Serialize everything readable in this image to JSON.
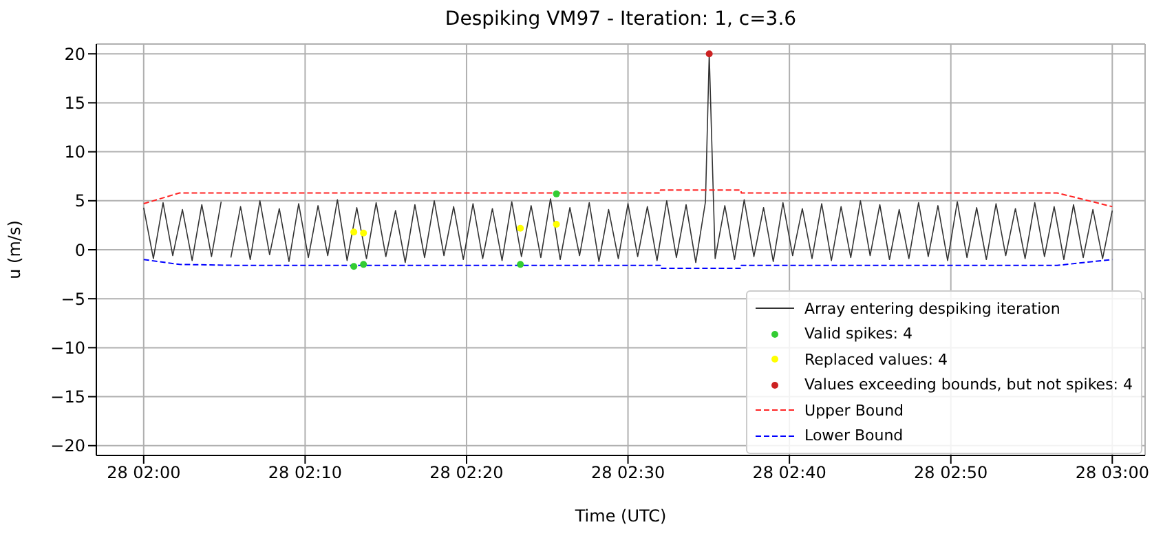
{
  "chart_data": {
    "type": "line",
    "title": "Despiking VM97 - Iteration: 1, c=3.6",
    "xlabel": "Time (UTC)",
    "ylabel": "u (m/s)",
    "xlim": [
      "2000-01-28T01:57:04",
      "2000-01-28T03:02:02"
    ],
    "xticks": [
      {
        "value": "2000-01-28T02:00",
        "label": "28 02:00"
      },
      {
        "value": "2000-01-28T02:10",
        "label": "28 02:10"
      },
      {
        "value": "2000-01-28T02:20",
        "label": "28 02:20"
      },
      {
        "value": "2000-01-28T02:30",
        "label": "28 02:30"
      },
      {
        "value": "2000-01-28T02:40",
        "label": "28 02:40"
      },
      {
        "value": "2000-01-28T02:50",
        "label": "28 02:50"
      },
      {
        "value": "2000-01-28T03:00",
        "label": "28 03:00"
      }
    ],
    "ylim": [
      -21,
      21
    ],
    "yticks": [
      -20,
      -15,
      -10,
      -5,
      0,
      5,
      10,
      15,
      20
    ],
    "grid": true,
    "legend": "bottom right",
    "series": [
      {
        "name": "Array entering despiking iteration",
        "color": "#333333",
        "line_style": "solid",
        "marker": "none",
        "x": [
          "2000-01-28T02:00:00",
          "2000-01-28T02:00:36",
          "2000-01-28T02:01:12",
          "2000-01-28T02:01:48",
          "2000-01-28T02:02:24",
          "2000-01-28T02:03:00",
          "2000-01-28T02:03:36",
          "2000-01-28T02:04:12",
          "2000-01-28T02:04:48",
          "2000-01-28T02:05:00",
          "2000-01-28T02:05:24",
          "2000-01-28T02:06:00",
          "2000-01-28T02:06:36",
          "2000-01-28T02:07:12",
          "2000-01-28T02:07:48",
          "2000-01-28T02:08:24",
          "2000-01-28T02:09:00",
          "2000-01-28T02:09:36",
          "2000-01-28T02:10:12",
          "2000-01-28T02:10:48",
          "2000-01-28T02:11:24",
          "2000-01-28T02:12:00",
          "2000-01-28T02:12:36",
          "2000-01-28T02:13:12",
          "2000-01-28T02:13:48",
          "2000-01-28T02:14:24",
          "2000-01-28T02:15:00",
          "2000-01-28T02:15:36",
          "2000-01-28T02:16:12",
          "2000-01-28T02:16:48",
          "2000-01-28T02:17:24",
          "2000-01-28T02:18:00",
          "2000-01-28T02:18:36",
          "2000-01-28T02:19:12",
          "2000-01-28T02:19:48",
          "2000-01-28T02:20:24",
          "2000-01-28T02:21:00",
          "2000-01-28T02:21:36",
          "2000-01-28T02:22:12",
          "2000-01-28T02:22:48",
          "2000-01-28T02:23:24",
          "2000-01-28T02:24:00",
          "2000-01-28T02:24:36",
          "2000-01-28T02:25:12",
          "2000-01-28T02:25:48",
          "2000-01-28T02:26:24",
          "2000-01-28T02:27:00",
          "2000-01-28T02:27:36",
          "2000-01-28T02:28:12",
          "2000-01-28T02:28:48",
          "2000-01-28T02:29:24",
          "2000-01-28T02:30:00",
          "2000-01-28T02:30:36",
          "2000-01-28T02:31:12",
          "2000-01-28T02:31:48",
          "2000-01-28T02:32:24",
          "2000-01-28T02:33:00",
          "2000-01-28T02:33:36",
          "2000-01-28T02:34:12",
          "2000-01-28T02:34:48",
          "2000-01-28T02:35:02",
          "2000-01-28T02:35:24",
          "2000-01-28T02:36:00",
          "2000-01-28T02:36:36",
          "2000-01-28T02:37:12",
          "2000-01-28T02:37:48",
          "2000-01-28T02:38:24",
          "2000-01-28T02:39:00",
          "2000-01-28T02:39:36",
          "2000-01-28T02:40:12",
          "2000-01-28T02:40:48",
          "2000-01-28T02:41:24",
          "2000-01-28T02:42:00",
          "2000-01-28T02:42:36",
          "2000-01-28T02:43:12",
          "2000-01-28T02:43:48",
          "2000-01-28T02:44:24",
          "2000-01-28T02:45:00",
          "2000-01-28T02:45:36",
          "2000-01-28T02:46:12",
          "2000-01-28T02:46:48",
          "2000-01-28T02:47:24",
          "2000-01-28T02:48:00",
          "2000-01-28T02:48:36",
          "2000-01-28T02:49:12",
          "2000-01-28T02:49:48",
          "2000-01-28T02:50:24",
          "2000-01-28T02:51:00",
          "2000-01-28T02:51:36",
          "2000-01-28T02:52:12",
          "2000-01-28T02:52:48",
          "2000-01-28T02:53:24",
          "2000-01-28T02:54:00",
          "2000-01-28T02:54:36",
          "2000-01-28T02:55:12",
          "2000-01-28T02:55:48",
          "2000-01-28T02:56:24",
          "2000-01-28T02:57:00",
          "2000-01-28T02:57:36",
          "2000-01-28T02:58:12",
          "2000-01-28T02:58:48",
          "2000-01-28T02:59:24",
          "2000-01-28T03:00:00"
        ],
        "values": [
          4.3,
          -0.9,
          4.8,
          -0.6,
          4.1,
          -1.1,
          4.6,
          -0.7,
          4.9,
          null,
          -0.8,
          4.4,
          -1.0,
          5.0,
          -0.5,
          4.2,
          -1.2,
          4.7,
          -0.8,
          4.5,
          -0.6,
          5.1,
          -1.1,
          4.3,
          -0.9,
          4.8,
          -0.7,
          4.0,
          -1.3,
          4.6,
          -0.8,
          5.0,
          -0.6,
          4.4,
          -1.0,
          4.7,
          -0.9,
          4.2,
          -1.1,
          4.9,
          -0.7,
          4.5,
          -0.8,
          5.2,
          -1.0,
          4.3,
          -0.6,
          4.8,
          -1.2,
          4.1,
          -0.9,
          4.7,
          -0.7,
          4.4,
          -1.1,
          5.0,
          -0.8,
          4.6,
          -1.3,
          4.9,
          20,
          -0.9,
          4.5,
          -1.0,
          5.1,
          -0.7,
          4.3,
          -1.2,
          4.8,
          -0.6,
          4.2,
          -0.9,
          4.7,
          -1.1,
          4.4,
          -0.8,
          5.0,
          -0.6,
          4.6,
          -1.0,
          4.1,
          -0.9,
          4.8,
          -0.7,
          4.5,
          -1.1,
          4.9,
          -0.8,
          4.3,
          -1.0,
          4.7,
          -0.6,
          4.2,
          -0.9,
          4.8,
          -0.7,
          4.4,
          -1.0,
          4.6,
          -0.8,
          4.1,
          -0.9,
          4.0
        ]
      },
      {
        "name": "Valid spikes: 4",
        "type": "scatter",
        "color": "#33cc33",
        "marker": "circle",
        "x": [
          "2000-01-28T02:13:01",
          "2000-01-28T02:13:37",
          "2000-01-28T02:23:20",
          "2000-01-28T02:25:34"
        ],
        "values": [
          -1.7,
          -1.5,
          -1.5,
          5.7
        ]
      },
      {
        "name": "Replaced values: 4",
        "type": "scatter",
        "color": "#ffff00",
        "marker": "circle",
        "x": [
          "2000-01-28T02:13:01",
          "2000-01-28T02:13:37",
          "2000-01-28T02:23:20",
          "2000-01-28T02:25:34"
        ],
        "values": [
          1.8,
          1.7,
          2.2,
          2.6
        ]
      },
      {
        "name": "Values exceeding bounds, but not spikes: 4",
        "type": "scatter",
        "color": "#cc2222",
        "marker": "circle",
        "x": [
          "2000-01-28T02:35:02"
        ],
        "values": [
          20
        ]
      },
      {
        "name": "Upper Bound",
        "color": "#ff2222",
        "line_style": "dashed",
        "marker": "none",
        "x": [
          "2000-01-28T02:00:00",
          "2000-01-28T02:02:13",
          "2000-01-28T02:06:00",
          "2000-01-28T02:32:00",
          "2000-01-28T02:32:01",
          "2000-01-28T02:37:00",
          "2000-01-28T02:37:01",
          "2000-01-28T02:56:35",
          "2000-01-28T03:00:00"
        ],
        "values": [
          4.7,
          5.8,
          5.8,
          5.8,
          6.1,
          6.1,
          5.8,
          5.8,
          4.4
        ]
      },
      {
        "name": "Lower Bound",
        "color": "#0000ff",
        "line_style": "dashed",
        "marker": "none",
        "x": [
          "2000-01-28T02:00:00",
          "2000-01-28T02:02:13",
          "2000-01-28T02:06:00",
          "2000-01-28T02:32:00",
          "2000-01-28T02:32:01",
          "2000-01-28T02:37:00",
          "2000-01-28T02:37:01",
          "2000-01-28T02:56:35",
          "2000-01-28T03:00:00"
        ],
        "values": [
          -1.0,
          -1.5,
          -1.6,
          -1.6,
          -1.9,
          -1.9,
          -1.6,
          -1.6,
          -1.0
        ]
      }
    ]
  }
}
